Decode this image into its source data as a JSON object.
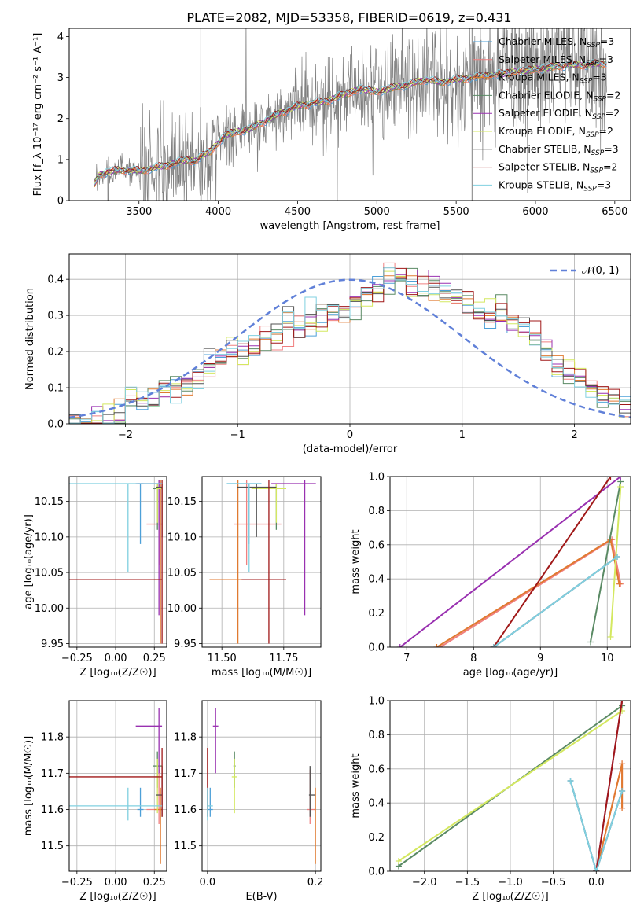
{
  "figure_title": "PLATE=2082, MJD=53358, FIBERID=0619, z=0.431",
  "colors": {
    "grid": "#b0b0b0",
    "flux_data": "#808080",
    "normal_curve": "#6080d8"
  },
  "models": [
    {
      "name": "Chabrier MILES",
      "nssp": "3",
      "color": "#4da0d8"
    },
    {
      "name": "Salpeter MILES",
      "nssp": "3",
      "color": "#f08080"
    },
    {
      "name": "Kroupa MILES",
      "nssp": "3",
      "color": "#e07a30"
    },
    {
      "name": "Chabrier ELODIE",
      "nssp": "2",
      "color": "#5a8a64"
    },
    {
      "name": "Salpeter ELODIE",
      "nssp": "2",
      "color": "#9930b0"
    },
    {
      "name": "Kroupa ELODIE",
      "nssp": "2",
      "color": "#d4e860"
    },
    {
      "name": "Chabrier STELIB",
      "nssp": "3",
      "color": "#505050"
    },
    {
      "name": "Salpeter STELIB",
      "nssp": "2",
      "color": "#a01818"
    },
    {
      "name": "Kroupa STELIB",
      "nssp": "3",
      "color": "#80d0e0"
    }
  ],
  "chart_data": [
    {
      "id": "spectrum",
      "type": "line",
      "xlabel": "wavelength [Angstrom, rest frame]",
      "ylabel": "Flux [f_λ 10⁻¹⁷ erg cm⁻² s⁻¹ A⁻¹]",
      "xlim": [
        3060,
        6600
      ],
      "ylim": [
        0,
        4.2
      ],
      "xticks": [
        3500,
        4000,
        4500,
        5000,
        5500,
        6000,
        6500
      ],
      "yticks": [
        0,
        1,
        2,
        3,
        4
      ],
      "grid": false,
      "legend": "upper right",
      "data_series": "observed spectrum (grey)",
      "model_continuum": {
        "wavelength": [
          3220,
          3250,
          3300,
          3400,
          3500,
          3600,
          3700,
          3800,
          3850,
          3900,
          3950,
          4000,
          4050,
          4100,
          4200,
          4300,
          4400,
          4500,
          4600,
          4700,
          4800,
          4900,
          5000,
          5100,
          5200,
          5300,
          5400,
          5500,
          5600,
          5700,
          5800,
          5900,
          6000,
          6100,
          6200,
          6300,
          6450
        ],
        "flux": [
          0.4,
          0.62,
          0.7,
          0.75,
          0.72,
          0.8,
          0.88,
          1.0,
          0.95,
          1.1,
          1.2,
          1.4,
          1.62,
          1.65,
          1.75,
          1.95,
          2.15,
          2.3,
          2.38,
          2.45,
          2.6,
          2.72,
          2.65,
          2.75,
          2.82,
          2.95,
          2.88,
          2.95,
          3.0,
          3.05,
          3.1,
          3.15,
          3.2,
          3.25,
          3.3,
          3.3,
          3.35
        ]
      }
    },
    {
      "id": "residuals",
      "type": "histogram",
      "xlabel": "(data-model)/error",
      "ylabel": "Normed distribution",
      "xlim": [
        -2.5,
        2.5
      ],
      "ylim": [
        0,
        0.47
      ],
      "xticks": [
        -2,
        -1,
        0,
        1,
        2
      ],
      "yticks": [
        0.0,
        0.1,
        0.2,
        0.3,
        0.4
      ],
      "grid": true,
      "legend": "upper right",
      "normal_label": "𝒩(0, 1)",
      "bins": [
        -2.5,
        -2.4,
        -2.3,
        -2.2,
        -2.1,
        -2.0,
        -1.9,
        -1.8,
        -1.7,
        -1.6,
        -1.5,
        -1.4,
        -1.3,
        -1.2,
        -1.1,
        -1.0,
        -0.9,
        -0.8,
        -0.7,
        -0.6,
        -0.5,
        -0.4,
        -0.3,
        -0.2,
        -0.1,
        0.0,
        0.1,
        0.2,
        0.3,
        0.4,
        0.5,
        0.6,
        0.7,
        0.8,
        0.9,
        1.0,
        1.1,
        1.2,
        1.3,
        1.4,
        1.5,
        1.6,
        1.7,
        1.8,
        1.9,
        2.0,
        2.1,
        2.2,
        2.3,
        2.4,
        2.5
      ],
      "density_typical": [
        0.02,
        0.01,
        0.01,
        0.02,
        0.03,
        0.06,
        0.07,
        0.08,
        0.09,
        0.11,
        0.12,
        0.14,
        0.16,
        0.18,
        0.2,
        0.21,
        0.22,
        0.24,
        0.25,
        0.27,
        0.28,
        0.29,
        0.3,
        0.31,
        0.32,
        0.33,
        0.35,
        0.37,
        0.4,
        0.41,
        0.4,
        0.38,
        0.37,
        0.36,
        0.34,
        0.33,
        0.31,
        0.3,
        0.3,
        0.29,
        0.28,
        0.24,
        0.21,
        0.17,
        0.14,
        0.13,
        0.1,
        0.08,
        0.06,
        0.05
      ]
    },
    {
      "id": "age_vs_Z",
      "type": "errorbar",
      "xlabel": "Z [log₁₀(Z/Z☉)]",
      "ylabel": "age  [log₁₀(age/yr)]",
      "xlim": [
        -0.3,
        0.33
      ],
      "ylim": [
        9.945,
        10.185
      ],
      "xticks": [
        -0.25,
        0.0,
        0.25
      ],
      "yticks": [
        9.95,
        10.0,
        10.05,
        10.1,
        10.15
      ],
      "grid": true
    },
    {
      "id": "age_vs_mass",
      "type": "errorbar",
      "xlabel": "mass [log₁₀(M/M☉)]",
      "ylabel": "",
      "xlim": [
        11.42,
        11.9
      ],
      "ylim": [
        9.945,
        10.185
      ],
      "xticks": [
        11.5,
        11.75
      ],
      "yticks": [
        9.95,
        10.0,
        10.05,
        10.1,
        10.15
      ],
      "grid": true
    },
    {
      "id": "mass_weight_vs_age",
      "type": "line",
      "xlabel": "age  [log₁₀(age/yr)]",
      "ylabel": "mass weight",
      "xlim": [
        6.75,
        10.35
      ],
      "ylim": [
        0,
        1
      ],
      "xticks": [
        7,
        8,
        9,
        10
      ],
      "yticks": [
        0.0,
        0.2,
        0.4,
        0.6,
        0.8,
        1.0
      ],
      "grid": true
    },
    {
      "id": "mass_vs_Z",
      "type": "errorbar",
      "xlabel": "Z [log₁₀(Z/Z☉)]",
      "ylabel": "mass [log₁₀(M/M☉)]",
      "xlim": [
        -0.3,
        0.33
      ],
      "ylim": [
        11.43,
        11.9
      ],
      "xticks": [
        -0.25,
        0.0,
        0.25
      ],
      "yticks": [
        11.5,
        11.6,
        11.7,
        11.8
      ],
      "grid": true
    },
    {
      "id": "mass_vs_ebv",
      "type": "errorbar",
      "xlabel": "E(B-V)",
      "ylabel": "",
      "xlim": [
        -0.01,
        0.21
      ],
      "ylim": [
        11.43,
        11.9
      ],
      "xticks": [
        0.0,
        0.2
      ],
      "yticks": [
        11.5,
        11.6,
        11.7,
        11.8
      ],
      "grid": true
    },
    {
      "id": "mass_weight_vs_Z",
      "type": "line",
      "xlabel": "Z [log₁₀(Z/Z☉)]",
      "ylabel": "mass weight",
      "xlim": [
        -2.4,
        0.4
      ],
      "ylim": [
        0,
        1
      ],
      "xticks": [
        -2.0,
        -1.5,
        -1.0,
        -0.5,
        0.0
      ],
      "yticks": [
        0.0,
        0.2,
        0.4,
        0.6,
        0.8,
        1.0
      ],
      "grid": true
    }
  ],
  "model_fits": [
    {
      "z": 0.16,
      "zlo": 0.14,
      "zhi": 0.18,
      "age": 10.175,
      "alo": 10.09,
      "ahi": 10.175,
      "mass": 11.61,
      "mlo": 11.52,
      "mhi": 11.66,
      "mmass": 11.6,
      "mmlo": 11.58,
      "mmhi": 11.66,
      "ebv": 0.005,
      "elo": 0.0,
      "ehi": 0.01,
      "pts_age": [
        [
          8.3,
          0.0
        ],
        [
          10.15,
          0.53
        ]
      ],
      "pts_z": [
        [
          -0.3,
          0.53
        ],
        [
          0.0,
          0.0
        ],
        [
          0.3,
          0.47
        ]
      ]
    },
    {
      "z": 0.28,
      "zlo": 0.2,
      "zhi": 0.3,
      "age": 10.118,
      "alo": 10.06,
      "ahi": 10.18,
      "mass": 11.6,
      "mlo": 11.55,
      "mhi": 11.74,
      "mmass": 11.6,
      "mmlo": 11.56,
      "mmhi": 11.71,
      "ebv": 0.19,
      "elo": 0.185,
      "ehi": 0.2,
      "pts_age": [
        [
          7.5,
          0.0
        ],
        [
          10.07,
          0.63
        ],
        [
          10.2,
          0.37
        ]
      ],
      "pts_z": [
        [
          0.0,
          0.0
        ],
        [
          0.3,
          0.63
        ],
        [
          0.3,
          0.37
        ]
      ]
    },
    {
      "z": 0.29,
      "zlo": 0.25,
      "zhi": 0.3,
      "age": 10.04,
      "alo": 9.95,
      "ahi": 10.18,
      "mass": 11.565,
      "mlo": 11.45,
      "mhi": 11.64,
      "mmass": 11.6,
      "mmlo": 11.45,
      "mmhi": 11.66,
      "ebv": 0.2,
      "elo": 0.198,
      "ehi": 0.2,
      "pts_age": [
        [
          7.45,
          0.0
        ],
        [
          10.05,
          0.63
        ],
        [
          10.18,
          0.37
        ]
      ],
      "pts_z": [
        [
          0.0,
          0.0
        ],
        [
          0.3,
          0.63
        ],
        [
          0.3,
          0.37
        ]
      ]
    },
    {
      "z": 0.27,
      "zlo": 0.24,
      "zhi": 0.3,
      "age": 10.168,
      "alo": 10.11,
      "ahi": 10.175,
      "mass": 11.72,
      "mlo": 11.62,
      "mhi": 11.76,
      "mmass": 11.72,
      "mmlo": 11.66,
      "mmhi": 11.76,
      "ebv": 0.05,
      "elo": 0.048,
      "ehi": 0.052,
      "pts_age": [
        [
          9.75,
          0.03
        ],
        [
          10.2,
          0.97
        ]
      ],
      "pts_z": [
        [
          -2.3,
          0.03
        ],
        [
          0.3,
          0.97
        ]
      ]
    },
    {
      "z": 0.28,
      "zlo": 0.13,
      "zhi": 0.3,
      "age": 10.175,
      "alo": 9.99,
      "ahi": 10.18,
      "mass": 11.835,
      "mlo": 11.7,
      "mhi": 11.88,
      "mmass": 11.83,
      "mmlo": 11.7,
      "mmhi": 11.88,
      "ebv": 0.015,
      "elo": 0.01,
      "ehi": 0.02,
      "pts_age": [
        [
          6.9,
          0.0
        ],
        [
          10.2,
          1.0
        ]
      ],
      "pts_z": [
        [
          0.0,
          0.0
        ],
        [
          0.3,
          1.0
        ]
      ]
    },
    {
      "z": 0.27,
      "zlo": 0.26,
      "zhi": 0.3,
      "age": 10.168,
      "alo": 10.12,
      "ahi": 10.175,
      "mass": 11.72,
      "mlo": 11.62,
      "mhi": 11.76,
      "mmass": 11.69,
      "mmlo": 11.59,
      "mmhi": 11.74,
      "ebv": 0.05,
      "elo": 0.045,
      "ehi": 0.055,
      "pts_age": [
        [
          10.05,
          0.06
        ],
        [
          10.2,
          0.94
        ]
      ],
      "pts_z": [
        [
          -2.3,
          0.06
        ],
        [
          0.3,
          0.94
        ]
      ]
    },
    {
      "z": 0.3,
      "zlo": 0.26,
      "zhi": 0.3,
      "age": 10.17,
      "alo": 10.1,
      "ahi": 10.175,
      "mass": 11.64,
      "mlo": 11.56,
      "mhi": 11.72,
      "mmass": 11.64,
      "mmlo": 11.58,
      "mmhi": 11.72,
      "ebv": 0.19,
      "elo": 0.188,
      "ehi": 0.2,
      "pts_age": [
        [
          8.3,
          0.0
        ],
        [
          10.15,
          0.53
        ]
      ],
      "pts_z": [
        [
          -0.3,
          0.53
        ],
        [
          0.0,
          0.0
        ],
        [
          0.3,
          0.47
        ]
      ]
    },
    {
      "z": 0.3,
      "zlo": -0.3,
      "zhi": 0.3,
      "age": 10.04,
      "alo": 9.95,
      "ahi": 10.18,
      "mass": 11.69,
      "mlo": 11.58,
      "mhi": 11.76,
      "mmass": 11.69,
      "mmlo": 11.58,
      "mmhi": 11.77,
      "ebv": 0.0,
      "elo": 0.0,
      "ehi": 0.0,
      "pts_age": [
        [
          8.3,
          0.0
        ],
        [
          10.05,
          1.0
        ]
      ],
      "pts_z": [
        [
          0.0,
          0.0
        ],
        [
          0.3,
          1.0
        ]
      ]
    },
    {
      "z": 0.08,
      "zlo": -0.3,
      "zhi": 0.3,
      "age": 10.175,
      "alo": 10.05,
      "ahi": 10.175,
      "mass": 11.61,
      "mlo": 11.52,
      "mhi": 11.66,
      "mmass": 11.61,
      "mmlo": 11.57,
      "mmhi": 11.66,
      "ebv": 0.0,
      "elo": 0.0,
      "ehi": 0.01,
      "pts_age": [
        [
          8.3,
          0.0
        ],
        [
          10.15,
          0.53
        ]
      ],
      "pts_z": [
        [
          -0.3,
          0.53
        ],
        [
          0.0,
          0.0
        ],
        [
          0.3,
          0.47
        ]
      ]
    }
  ]
}
